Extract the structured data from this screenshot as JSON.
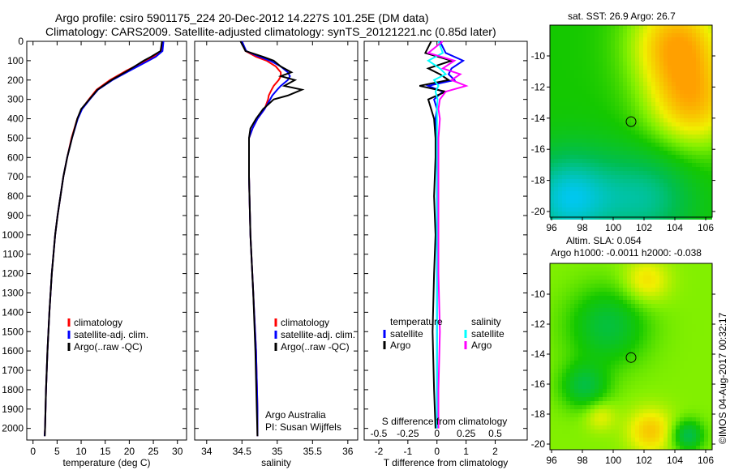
{
  "title_line1": "Argo profile: csiro 5901175_224 20-Dec-2012 14.227S 101.25E (DM data)",
  "title_line2": "Climatology: CARS2009. Satellite-adjusted climatology: synTS_20121221.nc (0.85d later)",
  "colors": {
    "climatology": "#ff0000",
    "satellite": "#0000ff",
    "argo": "#000000",
    "sal_satellite": "#00ffff",
    "sal_argo": "#ff00ff"
  },
  "chart_data": [
    {
      "type": "line",
      "name": "temperature",
      "xlabel": "temperature (deg C)",
      "xlim": [
        -1.3,
        31.9
      ],
      "xticks": [
        0,
        5,
        10,
        15,
        20,
        25,
        30
      ],
      "ylim": [
        2060,
        0
      ],
      "yticks": [
        0,
        100,
        200,
        300,
        400,
        500,
        600,
        700,
        800,
        900,
        1000,
        1100,
        1200,
        1300,
        1400,
        1500,
        1600,
        1700,
        1800,
        1900,
        2000
      ],
      "legend": [
        "climatology",
        "satellite-adj. clim.",
        "Argo(..raw -QC)"
      ],
      "depth": [
        0,
        50,
        80,
        100,
        150,
        200,
        250,
        300,
        350,
        400,
        500,
        600,
        700,
        800,
        900,
        1000,
        1200,
        1400,
        1600,
        1800,
        2000,
        2040
      ],
      "series": [
        {
          "name": "climatology",
          "values": [
            27,
            26.6,
            25,
            23.5,
            19.5,
            16,
            13.2,
            11.6,
            10.1,
            9.2,
            8,
            7.1,
            6.3,
            5.7,
            5.1,
            4.6,
            3.9,
            3.4,
            3,
            2.7,
            2.5,
            2.4
          ]
        },
        {
          "name": "satellite-adj. clim.",
          "values": [
            27.1,
            26.9,
            25.5,
            24,
            20.2,
            16.5,
            13.5,
            11.8,
            10.2,
            9.3,
            8.1,
            7.1,
            6.3,
            5.7,
            5.1,
            4.6,
            3.9,
            3.4,
            3,
            2.7,
            2.5,
            2.4
          ]
        },
        {
          "name": "Argo(..raw -QC)",
          "values": [
            26.8,
            26.5,
            24.5,
            23,
            19.8,
            16.3,
            13.4,
            11.7,
            10,
            9.2,
            8.1,
            7.1,
            6.3,
            5.7,
            5.1,
            4.6,
            3.9,
            3.4,
            3,
            2.7,
            2.5,
            2.45
          ]
        }
      ]
    },
    {
      "type": "line",
      "name": "salinity",
      "xlabel": "salinity",
      "xlim": [
        33.83,
        36.14
      ],
      "xticks": [
        34,
        34.5,
        35,
        35.5,
        36
      ],
      "ylim": [
        2060,
        0
      ],
      "legend": [
        "climatology",
        "satellite-adj. clim.",
        "Argo(..raw -QC)"
      ],
      "annotation": [
        "Argo Australia",
        "PI: Susan Wijffels"
      ],
      "depth": [
        0,
        50,
        80,
        100,
        130,
        160,
        180,
        200,
        230,
        250,
        280,
        300,
        350,
        400,
        450,
        500,
        700,
        1000,
        1300,
        1600,
        1900,
        2040
      ],
      "series": [
        {
          "name": "climatology",
          "values": [
            34.5,
            34.55,
            34.7,
            34.85,
            34.98,
            35.05,
            35.05,
            35.02,
            34.95,
            34.92,
            34.88,
            34.87,
            34.82,
            34.72,
            34.65,
            34.6,
            34.6,
            34.62,
            34.66,
            34.7,
            34.72,
            34.72
          ]
        },
        {
          "name": "satellite-adj. clim.",
          "values": [
            34.5,
            34.56,
            34.75,
            34.9,
            35.05,
            35.15,
            35.18,
            35.15,
            35.05,
            35,
            34.93,
            34.9,
            34.82,
            34.72,
            34.65,
            34.6,
            34.6,
            34.62,
            34.66,
            34.7,
            34.72,
            34.72
          ]
        },
        {
          "name": "Argo(..raw -QC)",
          "values": [
            34.48,
            34.55,
            34.8,
            34.95,
            35.05,
            35.2,
            35.05,
            35.25,
            35.1,
            35.35,
            35.15,
            34.95,
            34.8,
            34.7,
            34.62,
            34.6,
            34.6,
            34.62,
            34.66,
            34.69,
            34.71,
            34.72
          ]
        }
      ]
    },
    {
      "type": "line",
      "name": "differences",
      "xlabel": "T difference from climatology",
      "xlabel2": "S difference from climatology",
      "xlim": [
        -2.5,
        3.1
      ],
      "xticks": [
        -2,
        -1,
        0,
        1,
        2
      ],
      "xticks2": [
        "-0.5",
        "-0.25",
        "0",
        "0.25",
        "0.5"
      ],
      "ylim": [
        2060,
        0
      ],
      "legend_heads": [
        "temperature",
        "salinity"
      ],
      "legend": [
        "satellite",
        "Argo",
        "satellite",
        "Argo"
      ],
      "depth": [
        0,
        60,
        100,
        140,
        170,
        200,
        230,
        260,
        300,
        350,
        400,
        500,
        600,
        800,
        1000,
        1200,
        1500,
        1800,
        2000
      ],
      "series": [
        {
          "name": "T satellite",
          "values": [
            0.1,
            0.3,
            0.9,
            0.5,
            0.4,
            0.6,
            -0.3,
            0.2,
            -0.1,
            0,
            -0.05,
            0,
            0,
            0,
            0,
            0,
            0,
            0,
            0
          ]
        },
        {
          "name": "T Argo",
          "values": [
            -0.2,
            -0.4,
            0.5,
            -0.3,
            0.1,
            0.4,
            -0.6,
            0.3,
            -0.3,
            -0.2,
            -0.1,
            -0.05,
            -0.05,
            -0.1,
            -0.05,
            -0.1,
            -0.15,
            -0.1,
            -0.05
          ]
        },
        {
          "name": "S satellite",
          "values": [
            0.05,
            0.2,
            -0.3,
            0.1,
            0.3,
            -0.1,
            0.05,
            -0.05,
            0.02,
            0,
            0,
            0,
            0,
            0,
            0,
            0,
            0,
            0,
            0
          ]
        },
        {
          "name": "S Argo",
          "values": [
            0.2,
            -0.3,
            0.6,
            0.2,
            0.8,
            0.5,
            1.0,
            0.3,
            0.1,
            0.05,
            0.1,
            0.05,
            0.05,
            0.05,
            0.05,
            0.05,
            0.1,
            0.05,
            0.05
          ]
        }
      ]
    }
  ],
  "maps": {
    "sst_title": "sat. SST: 26.9 Argo: 26.7",
    "sla_title1": "Altim. SLA: 0.054",
    "sla_title2": "Argo h1000: -0.0011 h2000: -0.038",
    "lon_ticks": [
      "96",
      "98",
      "100",
      "102",
      "104",
      "106"
    ],
    "lat_ticks": [
      "-10",
      "-12",
      "-14",
      "-16",
      "-18",
      "-20"
    ],
    "credit": "©IMOS 04-Aug-2017 00:32:17"
  }
}
